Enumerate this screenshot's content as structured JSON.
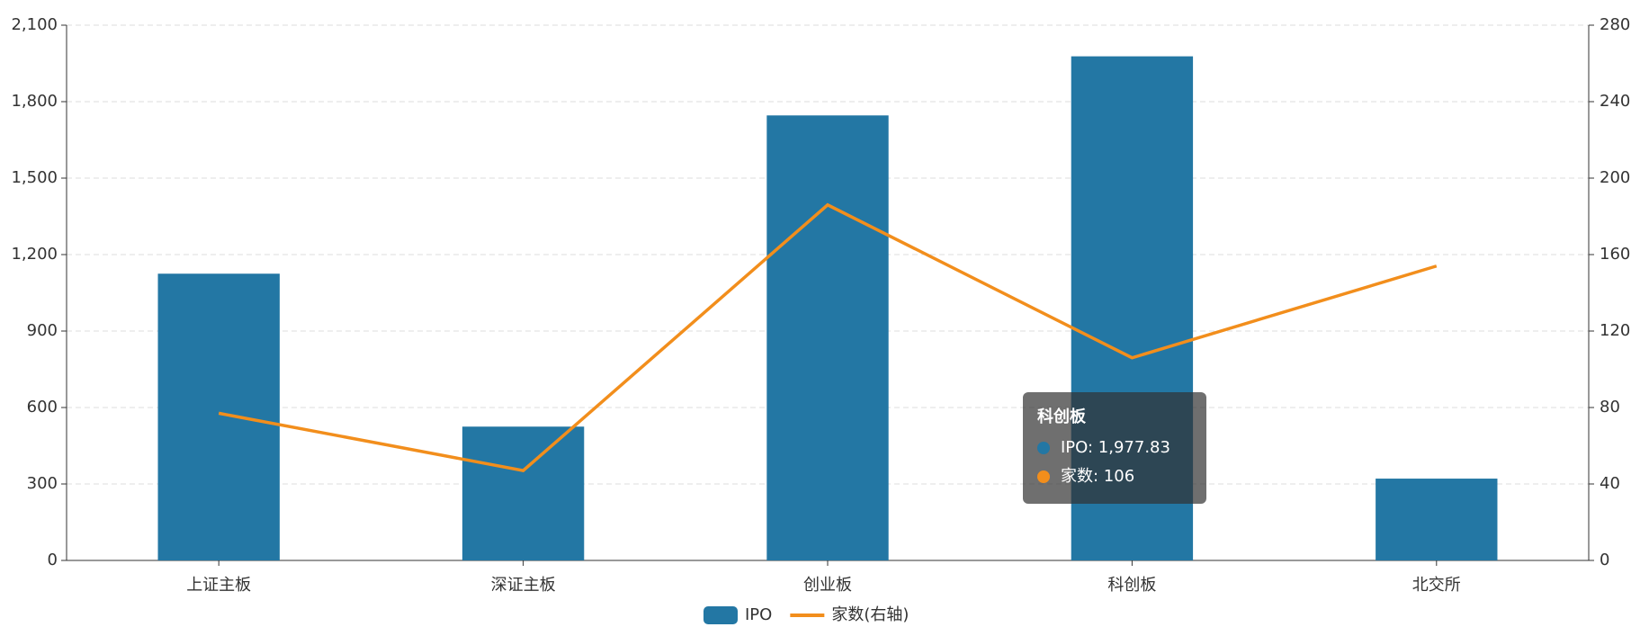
{
  "chart_data": {
    "type": "bar-line",
    "categories": [
      "上证主板",
      "深证主板",
      "创业板",
      "科创板",
      "北交所"
    ],
    "series": [
      {
        "name": "IPO",
        "type": "bar",
        "color": "#2377a4",
        "values": [
          1125,
          525,
          1746,
          1977.83,
          321
        ]
      },
      {
        "name": "家数(右轴)",
        "type": "line",
        "color": "#f28e1c",
        "axis": "y2",
        "values": [
          77,
          47,
          186,
          106,
          154
        ]
      }
    ],
    "ylim": [
      0,
      2100
    ],
    "yticks": [
      0,
      300,
      600,
      900,
      {
        "value": 1200,
        "label": "1,200"
      },
      {
        "value": 1500,
        "label": "1,500"
      },
      {
        "value": 1800,
        "label": "1,800"
      },
      {
        "value": 2100,
        "label": "2,100"
      }
    ],
    "y2lim": [
      0,
      280
    ],
    "y2ticks": [
      0,
      40,
      80,
      120,
      160,
      200,
      240,
      280
    ],
    "grid": true,
    "legend": "bottom",
    "tooltip": {
      "title": "科创板",
      "lines": [
        "IPO: 1,977.83",
        "家数: 106"
      ]
    }
  }
}
